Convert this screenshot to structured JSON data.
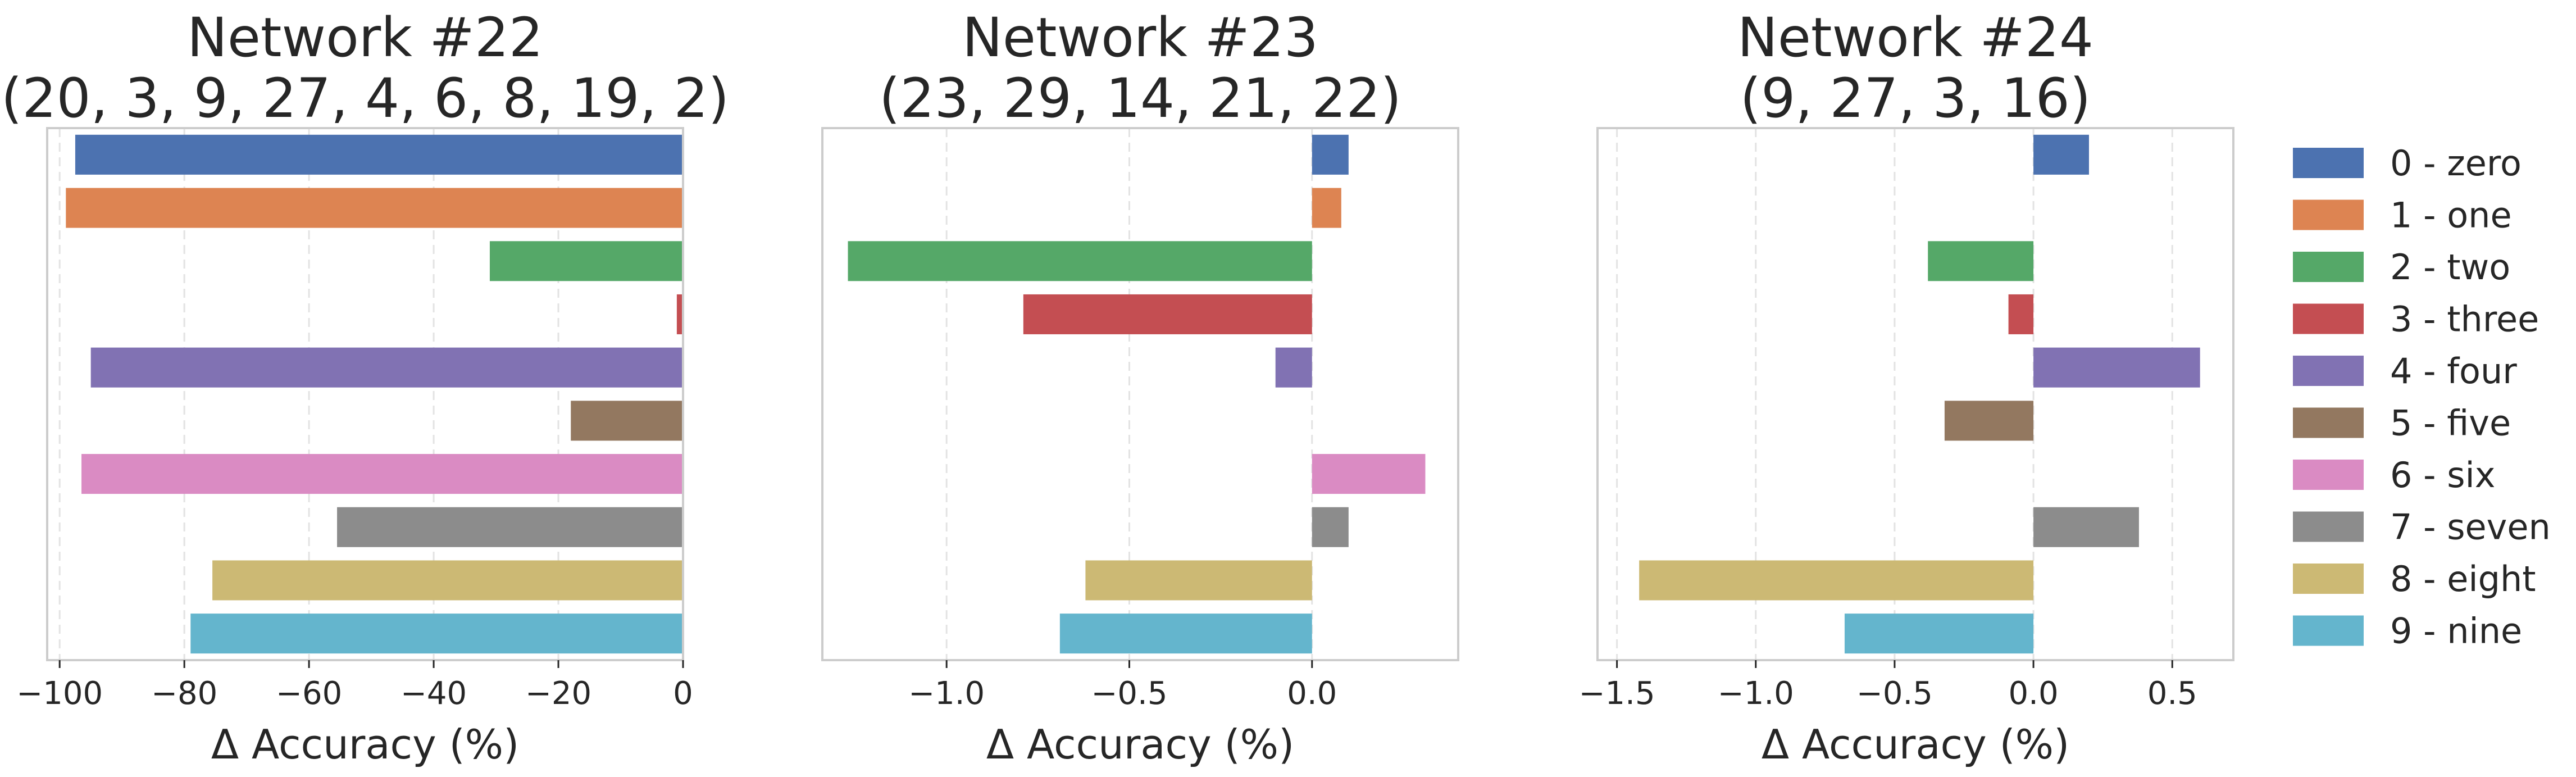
{
  "chart_data": [
    {
      "type": "bar",
      "orientation": "horizontal",
      "title": "Network #22\n(20, 3, 9, 27, 4, 6, 8, 19, 2)",
      "xlabel": "Δ Accuracy (%)",
      "ylabel": "",
      "xlim": [
        -102,
        0
      ],
      "xticks": [
        -100,
        -80,
        -60,
        -40,
        -20,
        0
      ],
      "xtick_labels": [
        "−100",
        "−80",
        "−60",
        "−40",
        "−20",
        "0"
      ],
      "grid": true,
      "categories": [
        "0 - zero",
        "1 - one",
        "2 - two",
        "3 - three",
        "4 - four",
        "5 - five",
        "6 - six",
        "7 - seven",
        "8 - eight",
        "9 - nine"
      ],
      "values": [
        -97.5,
        -99.0,
        -31.0,
        -1.0,
        -95.0,
        -18.0,
        -96.5,
        -55.5,
        -75.5,
        -79.0
      ]
    },
    {
      "type": "bar",
      "orientation": "horizontal",
      "title": "Network #23\n(23, 29, 14, 21, 22)",
      "xlabel": "Δ Accuracy (%)",
      "ylabel": "",
      "xlim": [
        -1.34,
        0.4
      ],
      "xticks": [
        -1.0,
        -0.5,
        0.0
      ],
      "xtick_labels": [
        "−1.0",
        "−0.5",
        "0.0"
      ],
      "grid": true,
      "categories": [
        "0 - zero",
        "1 - one",
        "2 - two",
        "3 - three",
        "4 - four",
        "5 - five",
        "6 - six",
        "7 - seven",
        "8 - eight",
        "9 - nine"
      ],
      "values": [
        0.1,
        0.08,
        -1.27,
        -0.79,
        -0.1,
        0.0,
        0.31,
        0.1,
        -0.62,
        -0.69
      ]
    },
    {
      "type": "bar",
      "orientation": "horizontal",
      "title": "Network #24\n(9, 27, 3, 16)",
      "xlabel": "Δ Accuracy (%)",
      "ylabel": "",
      "xlim": [
        -1.57,
        0.72
      ],
      "xticks": [
        -1.5,
        -1.0,
        -0.5,
        0.0,
        0.5
      ],
      "xtick_labels": [
        "−1.5",
        "−1.0",
        "−0.5",
        "0.0",
        "0.5"
      ],
      "grid": true,
      "categories": [
        "0 - zero",
        "1 - one",
        "2 - two",
        "3 - three",
        "4 - four",
        "5 - five",
        "6 - six",
        "7 - seven",
        "8 - eight",
        "9 - nine"
      ],
      "values": [
        0.2,
        0.0,
        -0.38,
        -0.09,
        0.6,
        -0.32,
        0.0,
        0.38,
        -1.42,
        -0.68
      ]
    }
  ],
  "legend": {
    "placement": "right",
    "items": [
      {
        "label": "0 - zero",
        "color": "#4c72b0"
      },
      {
        "label": "1 - one",
        "color": "#dd8452"
      },
      {
        "label": "2 - two",
        "color": "#55a868"
      },
      {
        "label": "3 - three",
        "color": "#c44e52"
      },
      {
        "label": "4 - four",
        "color": "#8172b3"
      },
      {
        "label": "5 - five",
        "color": "#937860"
      },
      {
        "label": "6 - six",
        "color": "#da8bc3"
      },
      {
        "label": "7 - seven",
        "color": "#8c8c8c"
      },
      {
        "label": "8 - eight",
        "color": "#ccb974"
      },
      {
        "label": "9 - nine",
        "color": "#64b5cd"
      }
    ]
  }
}
